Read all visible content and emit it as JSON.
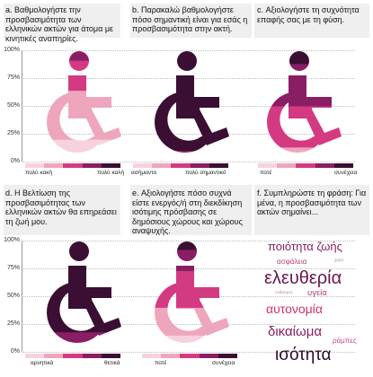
{
  "colors": {
    "scale5": [
      "#f7d2dc",
      "#eea6bd",
      "#d43a82",
      "#8a1e64",
      "#3a0f33"
    ],
    "grid": "#bdbdbd"
  },
  "panels": [
    {
      "id": "a",
      "question": "a. Βαθμολογήστε την προσβασιμότητα των ελληνικών ακτών για άτομα με κινητικές αναπηρίες.",
      "left_label": "πολύ κακή",
      "right_label": "πολύ καλή"
    },
    {
      "id": "b",
      "question": "b. Παρακαλώ βαθμολογήστε πόσο σημαντική είναι για εσάς η προσβασιμότητα στην ακτή.",
      "left_label": "ασήμαντο",
      "right_label": "πολύ σημαντικό"
    },
    {
      "id": "c",
      "question": "c. Αξιολογήστε τη συχνότητα επαφής σας με τη φύση.",
      "left_label": "ποτέ",
      "right_label": "συνέχεια"
    },
    {
      "id": "d",
      "question": "d. Η Βελτίωση της προσβασιμότητας των ελληνικών ακτών θα επηρεάσει τη ζωή μου.",
      "left_label": "αρνητικά",
      "right_label": "θετικά"
    },
    {
      "id": "e",
      "question": "e. Αξιολογήστε πόσο συχνά είστε ενεργός/ή στη διεκδίκηση ισότιμης πρόσβασης σε δημόσιους χώρους και χώρους αναψυχής.",
      "left_label": "ποτέ",
      "right_label": "συνέχεια"
    },
    {
      "id": "f",
      "question": "f. Συμπληρώστε τη φράση: Για μένα, η προσβασιμότητα των ακτών σημαίνει..."
    }
  ],
  "y_ticks": [
    "100%",
    "75%",
    "50%",
    "25%",
    "0%"
  ],
  "chart_data": [
    {
      "type": "stacked-bar",
      "panel": "a",
      "ylim": [
        0,
        100
      ],
      "series": [
        {
          "level": 1,
          "value": 20
        },
        {
          "level": 2,
          "value": 44
        },
        {
          "level": 3,
          "value": 27
        },
        {
          "level": 4,
          "value": 9
        },
        {
          "level": 5,
          "value": 0
        }
      ]
    },
    {
      "type": "stacked-bar",
      "panel": "b",
      "ylim": [
        0,
        100
      ],
      "series": [
        {
          "level": 1,
          "value": 0
        },
        {
          "level": 2,
          "value": 1
        },
        {
          "level": 3,
          "value": 3
        },
        {
          "level": 4,
          "value": 6
        },
        {
          "level": 5,
          "value": 90
        }
      ]
    },
    {
      "type": "stacked-bar",
      "panel": "c",
      "ylim": [
        0,
        100
      ],
      "series": [
        {
          "level": 1,
          "value": 3
        },
        {
          "level": 2,
          "value": 10
        },
        {
          "level": 3,
          "value": 37
        },
        {
          "level": 4,
          "value": 38
        },
        {
          "level": 5,
          "value": 12
        }
      ]
    },
    {
      "type": "stacked-bar",
      "panel": "d",
      "ylim": [
        0,
        100
      ],
      "series": [
        {
          "level": 1,
          "value": 0
        },
        {
          "level": 2,
          "value": 1
        },
        {
          "level": 3,
          "value": 6
        },
        {
          "level": 4,
          "value": 11
        },
        {
          "level": 5,
          "value": 82
        }
      ]
    },
    {
      "type": "stacked-bar",
      "panel": "e",
      "ylim": [
        0,
        100
      ],
      "series": [
        {
          "level": 1,
          "value": 15
        },
        {
          "level": 2,
          "value": 25
        },
        {
          "level": 3,
          "value": 33
        },
        {
          "level": 4,
          "value": 19
        },
        {
          "level": 5,
          "value": 8
        }
      ]
    }
  ],
  "word_cloud": [
    {
      "text": "ποιότητα ζωής",
      "color": "#8a1e64",
      "size": 13
    },
    {
      "text": "ασφάλεια",
      "color": "#b0407a",
      "size": 8
    },
    {
      "text": "χαρά",
      "color": "#b88aa4",
      "size": 4.5
    },
    {
      "text": "ελευθερία",
      "color": "#6a1650",
      "size": 20
    },
    {
      "text": "σεβασμός",
      "color": "#c28aaa",
      "size": 4.5
    },
    {
      "text": "υγεία",
      "color": "#b03a78",
      "size": 9.5
    },
    {
      "text": "αυτονομία",
      "color": "#d0306e",
      "size": 14
    },
    {
      "text": "δικαίωμα",
      "color": "#8a1e64",
      "size": 15
    },
    {
      "text": "ράμπες",
      "color": "#c04a86",
      "size": 8
    },
    {
      "text": "ισότητα",
      "color": "#2a0a26",
      "size": 19
    }
  ]
}
